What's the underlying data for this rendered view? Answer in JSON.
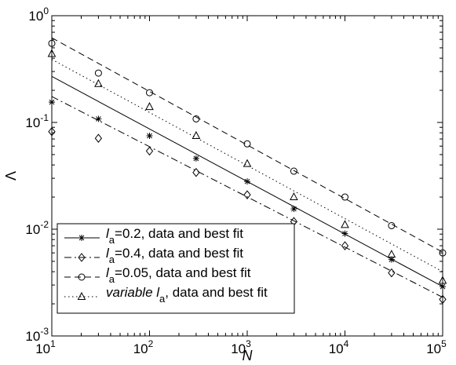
{
  "chart_data": {
    "type": "scatter",
    "title": "",
    "xlabel": "N",
    "ylabel": "Λ",
    "xscale": "log",
    "yscale": "log",
    "xlim": [
      10,
      100000
    ],
    "ylim": [
      0.001,
      1
    ],
    "x_tick_labels": [
      {
        "base": "10",
        "exp": "1"
      },
      {
        "base": "10",
        "exp": "2"
      },
      {
        "base": "10",
        "exp": "3"
      },
      {
        "base": "10",
        "exp": "4"
      },
      {
        "base": "10",
        "exp": "5"
      }
    ],
    "y_tick_labels": [
      {
        "base": "10",
        "exp": "-3"
      },
      {
        "base": "10",
        "exp": "-2"
      },
      {
        "base": "10",
        "exp": "-1"
      },
      {
        "base": "10",
        "exp": "0"
      }
    ],
    "grid": false,
    "legend_position": "bottom-left",
    "series": [
      {
        "key": "la02",
        "legend_label": {
          "pre": "l",
          "sub": "a",
          "post": "=0.2, data and best fit"
        },
        "marker": "asterisk",
        "line_style": "solid",
        "x": [
          10,
          30,
          100,
          300,
          1000,
          3000,
          10000,
          30000,
          100000
        ],
        "y": [
          0.155,
          0.108,
          0.075,
          0.046,
          0.028,
          0.0155,
          0.0091,
          0.0052,
          0.0029
        ],
        "fit": {
          "x": [
            10,
            100000
          ],
          "y": [
            0.27,
            0.0029
          ]
        }
      },
      {
        "key": "la04",
        "legend_label": {
          "pre": "l",
          "sub": "a",
          "post": "=0.4, data and best fit"
        },
        "marker": "diamond",
        "line_style": "dashdot",
        "x": [
          10,
          30,
          100,
          300,
          1000,
          3000,
          10000,
          30000,
          100000
        ],
        "y": [
          0.082,
          0.071,
          0.054,
          0.034,
          0.021,
          0.0118,
          0.007,
          0.0039,
          0.0022
        ],
        "fit": {
          "x": [
            10,
            100000
          ],
          "y": [
            0.175,
            0.0023
          ]
        }
      },
      {
        "key": "la005",
        "legend_label": {
          "pre": "l",
          "sub": "a",
          "post": "=0.05, data and best fit"
        },
        "marker": "circle",
        "line_style": "dashed",
        "x": [
          10,
          30,
          100,
          300,
          1000,
          3000,
          10000,
          30000,
          100000
        ],
        "y": [
          0.55,
          0.29,
          0.19,
          0.108,
          0.063,
          0.035,
          0.02,
          0.0108,
          0.006
        ],
        "fit": {
          "x": [
            10,
            100000
          ],
          "y": [
            0.62,
            0.0061
          ]
        }
      },
      {
        "key": "lavar",
        "legend_label": {
          "pre": "variable  l",
          "sub": "a",
          "post": ", data and best fit"
        },
        "marker": "triangle",
        "line_style": "dotted",
        "x": [
          10,
          30,
          100,
          300,
          1000,
          3000,
          10000,
          30000,
          100000
        ],
        "y": [
          0.44,
          0.23,
          0.14,
          0.075,
          0.041,
          0.02,
          0.011,
          0.0058,
          0.0033
        ],
        "fit": {
          "x": [
            10,
            100000
          ],
          "y": [
            0.39,
            0.004
          ]
        }
      }
    ]
  }
}
